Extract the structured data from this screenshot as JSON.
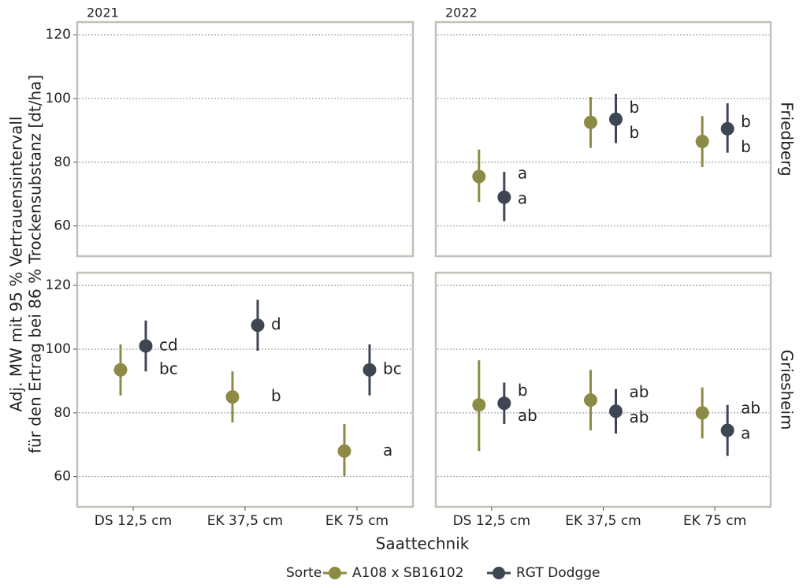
{
  "chart_data": {
    "type": "pointrange",
    "ylabel": [
      "Adj. MW mit 95 % Vertrauensintervall",
      "für den Ertrag bei 86 % Trockensubstanz [dt/ha]"
    ],
    "xlabel": "Saattechnik",
    "legend_title": "Sorte",
    "columns": [
      "2021",
      "2022"
    ],
    "rows": [
      "Friedberg",
      "Griesheim"
    ],
    "categories": [
      "DS 12,5 cm",
      "EK 37,5 cm",
      "EK 75 cm"
    ],
    "series": [
      {
        "name": "A108 x SB16102",
        "color": "#8c8a45"
      },
      {
        "name": "RGT Dodgge",
        "color": "#3e4651"
      }
    ],
    "ylim": [
      50.5,
      124
    ],
    "yticks": [
      60,
      80,
      100,
      120
    ],
    "grid": true,
    "panels": [
      {
        "series": [
          {
            "values": [
              null,
              null,
              null
            ],
            "lower": [
              null,
              null,
              null
            ],
            "upper": [
              null,
              null,
              null
            ],
            "letters": [
              null,
              null,
              null
            ]
          },
          {
            "values": [
              null,
              null,
              null
            ],
            "lower": [
              null,
              null,
              null
            ],
            "upper": [
              null,
              null,
              null
            ],
            "letters": [
              null,
              null,
              null
            ]
          }
        ]
      },
      {
        "series": [
          {
            "values": [
              75.5,
              92.5,
              86.5
            ],
            "lower": [
              67.5,
              84.5,
              78.5
            ],
            "upper": [
              84,
              100.5,
              94.5
            ],
            "letters": [
              "a",
              "b",
              "b"
            ]
          },
          {
            "values": [
              69,
              93.5,
              90.5
            ],
            "lower": [
              61.5,
              86,
              83
            ],
            "upper": [
              77,
              101.5,
              98.5
            ],
            "letters": [
              "a",
              "b",
              "b"
            ]
          }
        ]
      },
      {
        "series": [
          {
            "values": [
              93.5,
              85,
              68
            ],
            "lower": [
              85.5,
              77,
              60
            ],
            "upper": [
              101.5,
              93,
              76.5
            ],
            "letters": [
              "bc",
              "b",
              "a"
            ]
          },
          {
            "values": [
              101,
              107.5,
              93.5
            ],
            "lower": [
              93,
              99.5,
              85.5
            ],
            "upper": [
              109,
              115.5,
              101.5
            ],
            "letters": [
              "cd",
              "d",
              "bc"
            ]
          }
        ]
      },
      {
        "series": [
          {
            "values": [
              82.5,
              84,
              80
            ],
            "lower": [
              68,
              74.5,
              72
            ],
            "upper": [
              96.5,
              93.5,
              88
            ],
            "letters": [
              "ab",
              "ab",
              "ab"
            ]
          },
          {
            "values": [
              83,
              80.5,
              74.5
            ],
            "lower": [
              76.5,
              73.5,
              66.5
            ],
            "upper": [
              89.5,
              87.5,
              82.5
            ],
            "letters": [
              "b",
              "ab",
              "a"
            ]
          }
        ]
      }
    ]
  }
}
